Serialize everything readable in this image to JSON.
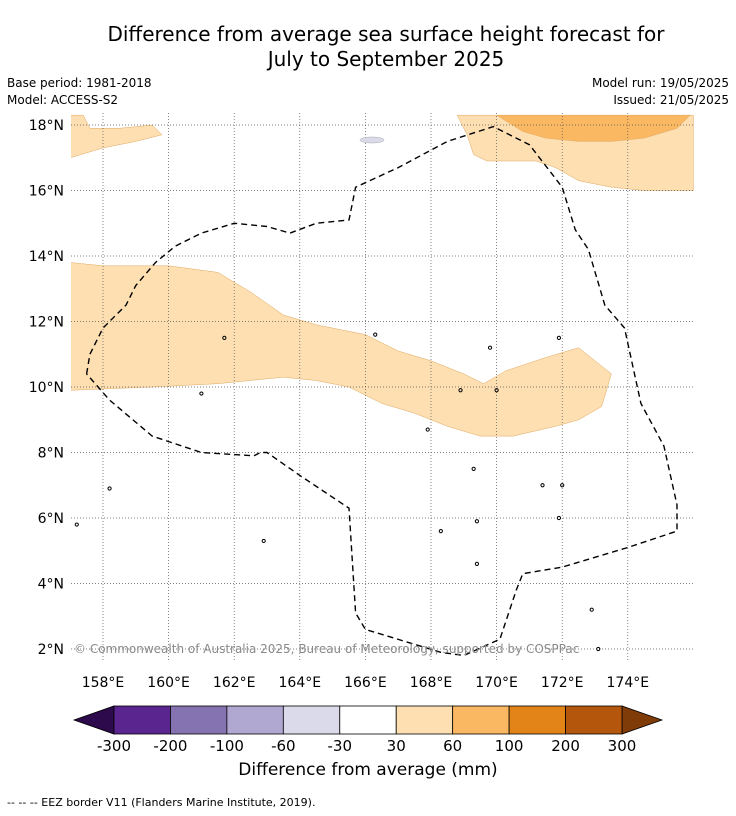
{
  "title_line1": "Difference from average sea surface height forecast for",
  "title_line2": "July to September 2025",
  "meta": {
    "base_period": "Base period: 1981-2018",
    "model": "Model: ACCESS-S2",
    "model_run": "Model run: 19/05/2025",
    "issued": "Issued: 21/05/2025"
  },
  "copyright": "© Commonwealth of Australia 2025, Bureau of Meteorology, supported by COSPPac",
  "footnote": "--  --  -- EEZ border V11 (Flanders Marine Institute, 2019).",
  "colors": {
    "bin_30_60": "#fddfb2",
    "bin_60_100": "#fbb862",
    "eez_border": "#000000",
    "gridline": "#555555"
  },
  "chart_data": {
    "type": "heatmap",
    "title": "Difference from average sea surface height forecast for July to September 2025",
    "x_axis": {
      "ticks": [
        "158°E",
        "160°E",
        "162°E",
        "164°E",
        "166°E",
        "168°E",
        "170°E",
        "172°E",
        "174°E"
      ],
      "tick_values": [
        158,
        160,
        162,
        164,
        166,
        168,
        170,
        172,
        174
      ],
      "range": [
        157,
        176
      ]
    },
    "y_axis": {
      "ticks": [
        "2°N",
        "4°N",
        "6°N",
        "8°N",
        "10°N",
        "12°N",
        "14°N",
        "16°N",
        "18°N"
      ],
      "tick_values": [
        2,
        4,
        6,
        8,
        10,
        12,
        14,
        16,
        18
      ],
      "range": [
        1.5,
        18.3
      ]
    },
    "grid": true,
    "colorbar": {
      "title": "Difference from average (mm)",
      "boundaries": [
        -300,
        -200,
        -100,
        -60,
        -30,
        30,
        60,
        100,
        200,
        300
      ],
      "tick_labels": [
        "-300",
        "-200",
        "-100",
        "-60",
        "-30",
        "30",
        "60",
        "100",
        "200",
        "300"
      ],
      "colors": [
        "#5b2590",
        "#8572b0",
        "#b1a8d2",
        "#dadaeb",
        "#ffffff",
        "#fddfb2",
        "#fbb862",
        "#e28418",
        "#b4570c"
      ],
      "under_color": "#2d0a4c",
      "over_color": "#7f3b08",
      "extend": "both"
    },
    "regions": [
      {
        "bin": "30 to 60",
        "polygon": [
          [
            157,
            13.8
          ],
          [
            158,
            13.7
          ],
          [
            160,
            13.7
          ],
          [
            161.5,
            13.5
          ],
          [
            162.5,
            12.9
          ],
          [
            163.5,
            12.2
          ],
          [
            164.5,
            11.9
          ],
          [
            166,
            11.6
          ],
          [
            167,
            11.1
          ],
          [
            168,
            10.8
          ],
          [
            169,
            10.4
          ],
          [
            169.6,
            10.1
          ],
          [
            170.3,
            10.5
          ],
          [
            171.5,
            10.9
          ],
          [
            172.5,
            11.2
          ],
          [
            173.5,
            10.4
          ],
          [
            173.2,
            9.4
          ],
          [
            172.5,
            9
          ],
          [
            171.8,
            8.8
          ],
          [
            170.5,
            8.5
          ],
          [
            169.5,
            8.5
          ],
          [
            168.5,
            8.8
          ],
          [
            167.5,
            9.2
          ],
          [
            166.5,
            9.5
          ],
          [
            165.5,
            10
          ],
          [
            164.5,
            10.2
          ],
          [
            163.5,
            10.3
          ],
          [
            161.5,
            10.1
          ],
          [
            159.5,
            10
          ],
          [
            157,
            9.9
          ]
        ]
      },
      {
        "bin": "30 to 60",
        "polygon": [
          [
            157,
            18.3
          ],
          [
            157.4,
            18.3
          ],
          [
            157.6,
            17.9
          ],
          [
            158.5,
            17.9
          ],
          [
            159.5,
            18
          ],
          [
            159.8,
            17.7
          ],
          [
            159,
            17.5
          ],
          [
            158,
            17.3
          ],
          [
            157,
            17.0
          ]
        ]
      },
      {
        "bin": "30 to 60",
        "polygon": [
          [
            168.8,
            18.3
          ],
          [
            176,
            18.3
          ],
          [
            176,
            16.0
          ],
          [
            174.5,
            16.0
          ],
          [
            173.5,
            16.1
          ],
          [
            172.5,
            16.3
          ],
          [
            171.8,
            16.7
          ],
          [
            171.2,
            16.9
          ],
          [
            170.5,
            16.9
          ],
          [
            169.7,
            16.9
          ],
          [
            169.3,
            17.1
          ],
          [
            169.1,
            17.7
          ]
        ]
      },
      {
        "bin": "60 to 100",
        "polygon": [
          [
            170,
            18.3
          ],
          [
            175.9,
            18.3
          ],
          [
            175.5,
            17.9
          ],
          [
            174.5,
            17.6
          ],
          [
            173.5,
            17.5
          ],
          [
            172.5,
            17.5
          ],
          [
            171.5,
            17.6
          ],
          [
            170.8,
            17.8
          ]
        ]
      }
    ],
    "eez_border": [
      [
        157.5,
        10.4
      ],
      [
        157.6,
        11.0
      ],
      [
        158.0,
        11.8
      ],
      [
        158.7,
        12.5
      ],
      [
        159.0,
        13.1
      ],
      [
        159.6,
        13.8
      ],
      [
        160.2,
        14.3
      ],
      [
        161.0,
        14.7
      ],
      [
        162.0,
        15.0
      ],
      [
        163.0,
        14.9
      ],
      [
        163.7,
        14.7
      ],
      [
        164.5,
        15.0
      ],
      [
        165.5,
        15.1
      ],
      [
        165.7,
        16.1
      ],
      [
        167.0,
        16.7
      ],
      [
        168.5,
        17.5
      ],
      [
        169.9,
        17.95
      ],
      [
        171.0,
        17.4
      ],
      [
        172.0,
        16.1
      ],
      [
        172.4,
        14.8
      ],
      [
        172.8,
        14.2
      ],
      [
        173.3,
        12.5
      ],
      [
        173.9,
        11.8
      ],
      [
        174.4,
        9.5
      ],
      [
        175.1,
        8.2
      ],
      [
        175.5,
        6.4
      ],
      [
        175.5,
        5.6
      ],
      [
        174.0,
        5.1
      ],
      [
        172.0,
        4.5
      ],
      [
        170.8,
        4.3
      ],
      [
        170.6,
        3.8
      ],
      [
        170.1,
        2.3
      ],
      [
        169.0,
        1.8
      ],
      [
        168.3,
        1.9
      ],
      [
        166.0,
        2.6
      ],
      [
        165.7,
        3.1
      ],
      [
        165.5,
        6.3
      ],
      [
        164.0,
        7.3
      ],
      [
        163.0,
        8.0
      ],
      [
        162.8,
        8.0
      ],
      [
        162.6,
        7.9
      ],
      [
        161.0,
        8.0
      ],
      [
        159.5,
        8.5
      ],
      [
        158.2,
        9.6
      ],
      [
        157.5,
        10.4
      ]
    ],
    "islands": [
      [
        158.2,
        6.9
      ],
      [
        162.9,
        5.3
      ],
      [
        157.2,
        5.8
      ],
      [
        161.7,
        11.5
      ],
      [
        166.3,
        11.6
      ],
      [
        167.9,
        8.7
      ],
      [
        168.9,
        9.9
      ],
      [
        169.3,
        7.5
      ],
      [
        169.4,
        5.9
      ],
      [
        169.4,
        4.6
      ],
      [
        171.4,
        7.0
      ],
      [
        172.0,
        7.0
      ],
      [
        171.9,
        6.0
      ],
      [
        172.9,
        3.2
      ],
      [
        173.1,
        2.0
      ],
      [
        168.3,
        5.6
      ],
      [
        169.8,
        11.2
      ],
      [
        171.9,
        11.5
      ],
      [
        170.0,
        9.9
      ],
      [
        161.0,
        9.8
      ]
    ]
  }
}
